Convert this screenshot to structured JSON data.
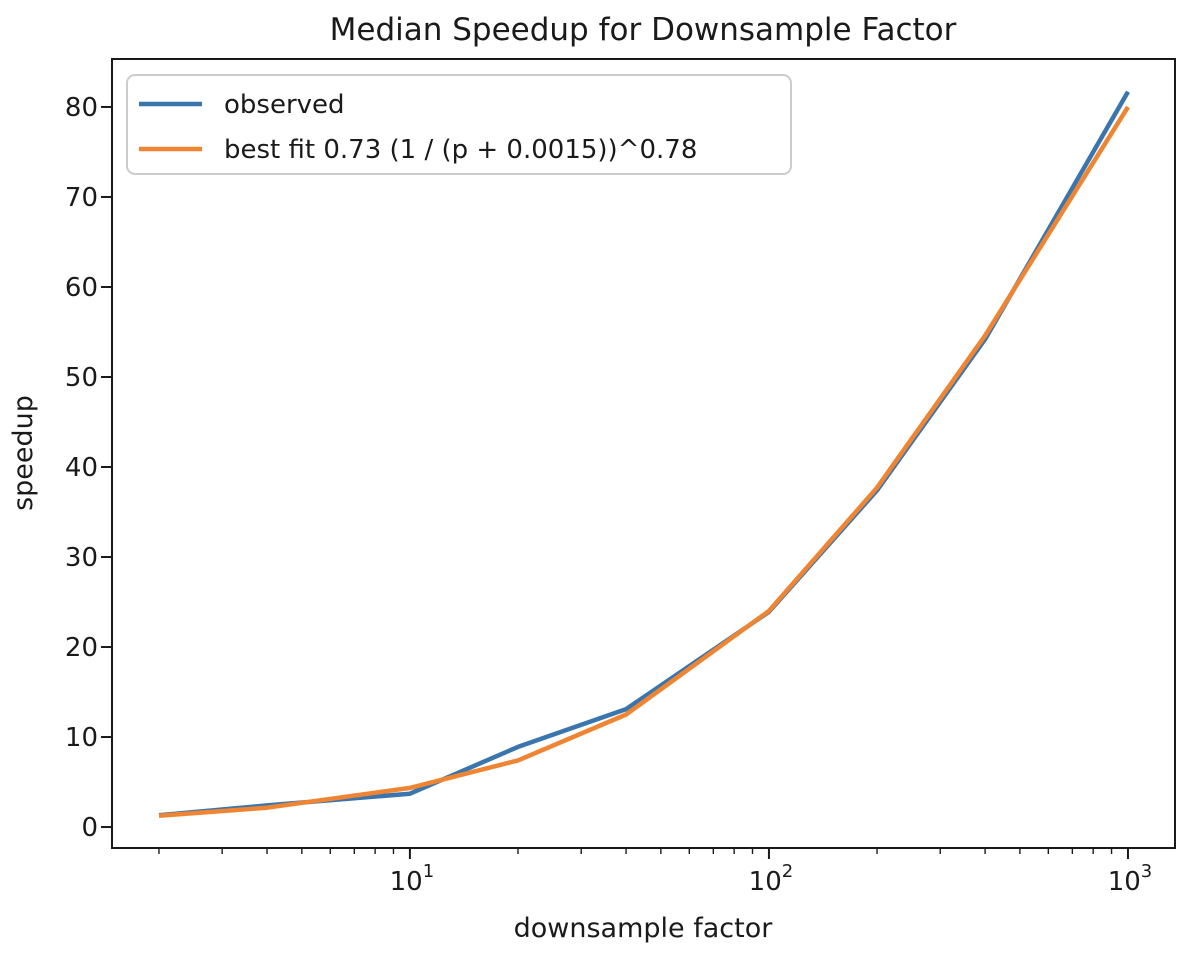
{
  "chart_data": {
    "type": "line",
    "title": "Median Speedup for Downsample Factor",
    "xlabel": "downsample factor",
    "ylabel": "speedup",
    "xscale": "log",
    "grid": false,
    "legend_position": "upper left",
    "background_color": "#ffffff",
    "spine_color": "#1a1a1a",
    "legend_border_color": "#cccccc",
    "x": [
      2,
      4,
      10,
      20,
      40,
      100,
      200,
      400,
      1000
    ],
    "series": [
      {
        "name": "observed",
        "color": "#3a76ad",
        "values": [
          1.3,
          2.4,
          3.7,
          8.9,
          13.1,
          23.9,
          37.4,
          54.2,
          81.7
        ]
      },
      {
        "name": "best fit 0.73 (1 / (p + 0.0015))^0.78",
        "color": "#ef8533",
        "values": [
          1.25,
          2.15,
          4.35,
          7.4,
          12.5,
          24.0,
          37.7,
          54.6,
          80.0
        ]
      }
    ],
    "xlim": [
      1.48,
      1352
    ],
    "ylim": [
      -2.33,
      85.33
    ],
    "yticks": [
      0,
      10,
      20,
      30,
      40,
      50,
      60,
      70,
      80
    ],
    "xticks": [
      {
        "value": 10,
        "base": "10",
        "exp": "1"
      },
      {
        "value": 100,
        "base": "10",
        "exp": "2"
      },
      {
        "value": 1000,
        "base": "10",
        "exp": "3"
      }
    ],
    "xticks_minor": [
      2,
      3,
      4,
      5,
      6,
      7,
      8,
      9,
      20,
      30,
      40,
      50,
      60,
      70,
      80,
      90,
      200,
      300,
      400,
      500,
      600,
      700,
      800,
      900
    ]
  }
}
